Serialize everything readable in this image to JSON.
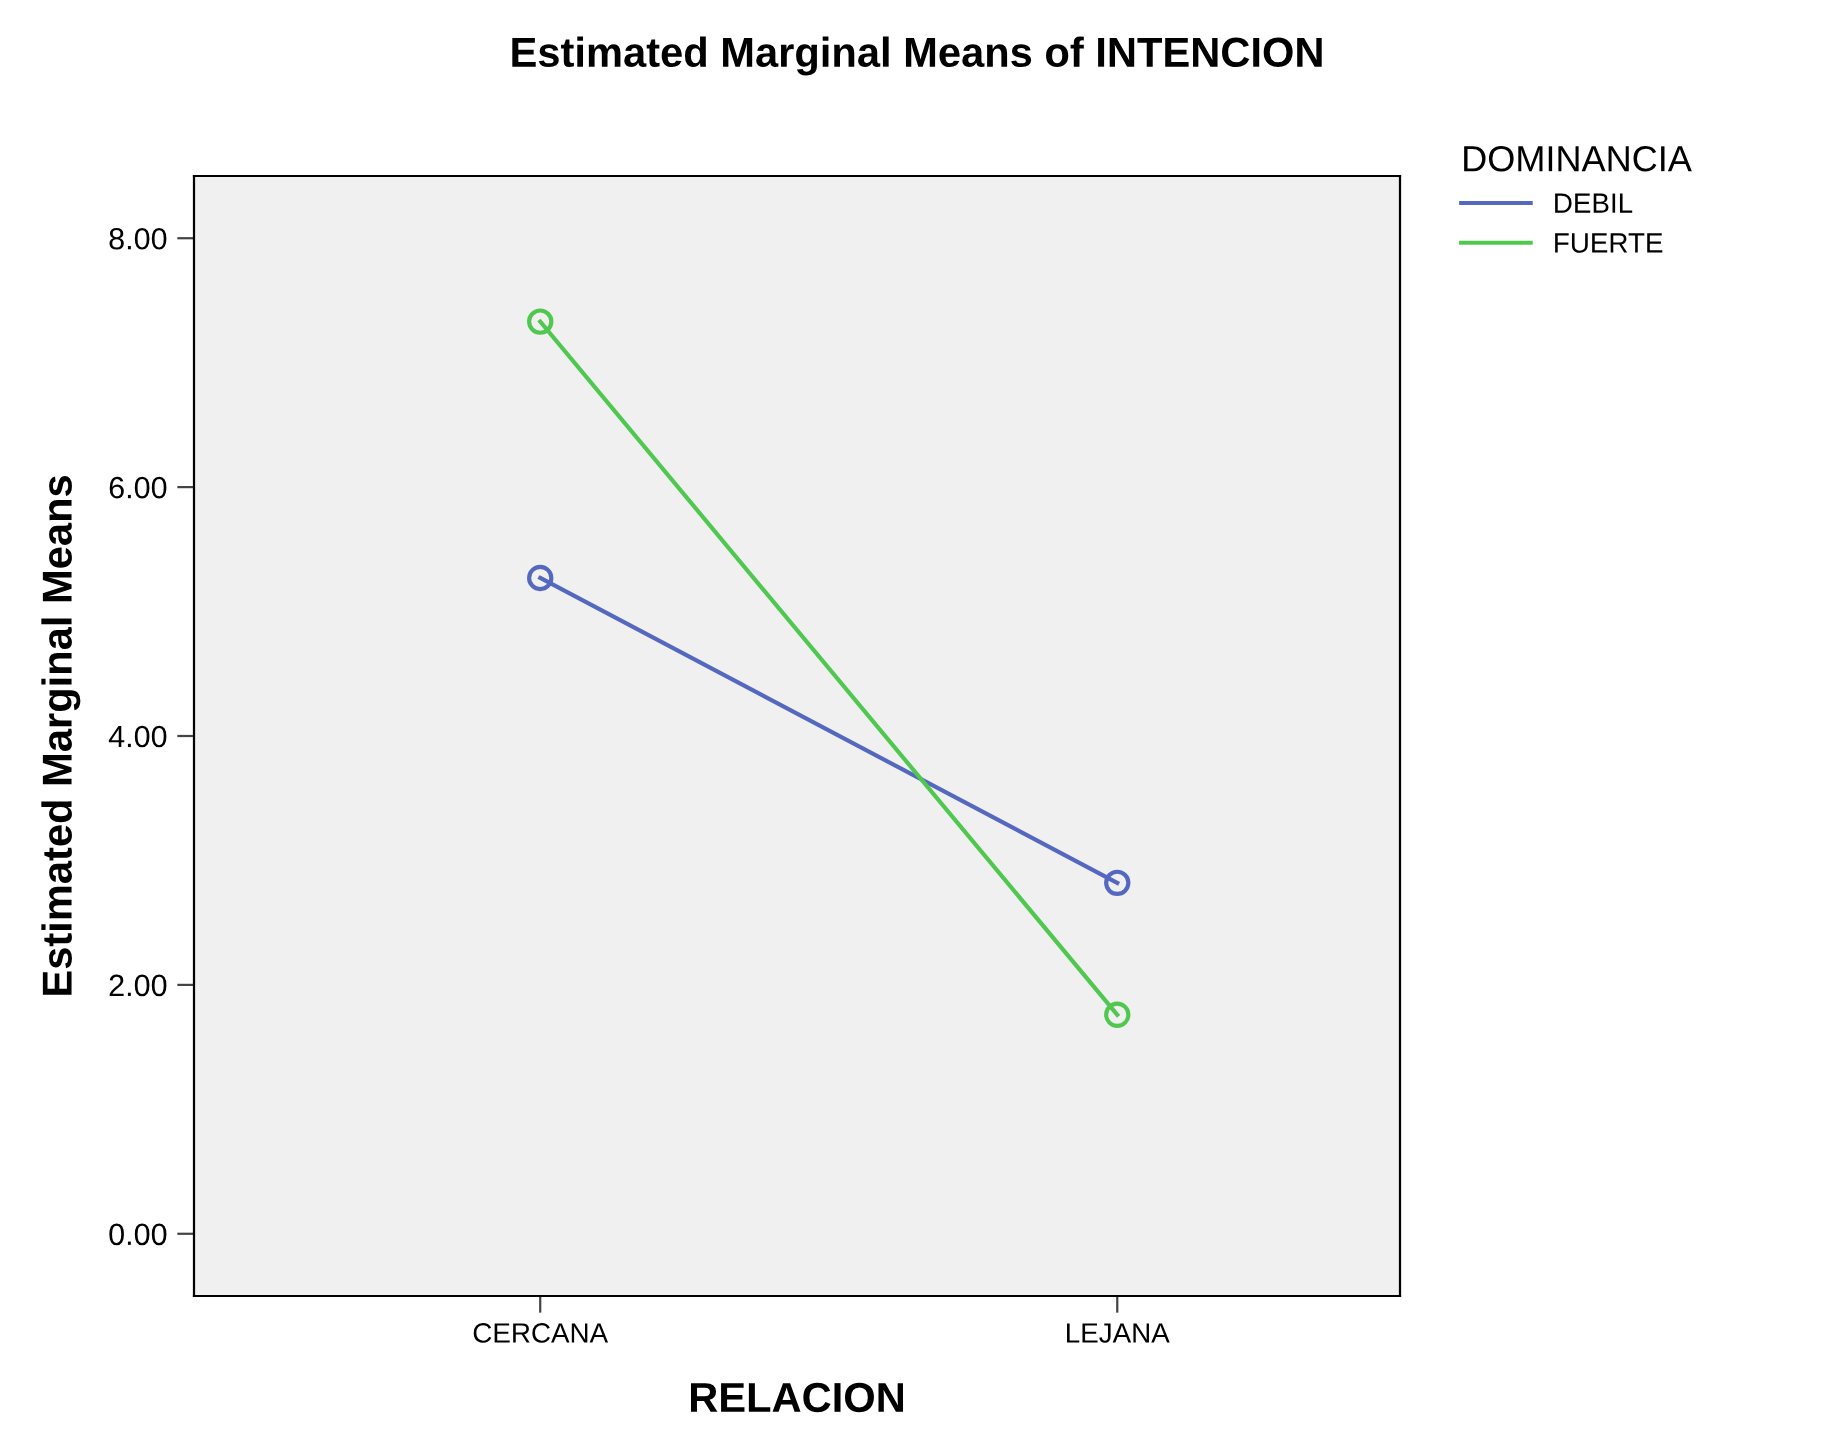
{
  "chart_data": {
    "type": "line",
    "title": "Estimated Marginal Means of INTENCION",
    "xlabel": "RELACION",
    "ylabel": "Estimated Marginal Means",
    "legend_title": "DOMINANCIA",
    "categories": [
      "CERCANA",
      "LEJANA"
    ],
    "series": [
      {
        "name": "DEBIL",
        "color": "#5468c0",
        "values": [
          5.27,
          2.82
        ]
      },
      {
        "name": "FUERTE",
        "color": "#50c850",
        "values": [
          7.33,
          1.76
        ]
      }
    ],
    "ylim": [
      -0.5,
      8.5
    ],
    "yticks": [
      {
        "value": 0,
        "label": "0.00"
      },
      {
        "value": 2,
        "label": "2.00"
      },
      {
        "value": 4,
        "label": "4.00"
      },
      {
        "value": 6,
        "label": "6.00"
      },
      {
        "value": 8,
        "label": "8.00"
      }
    ],
    "marker": "circle",
    "grid": false,
    "legend": "top right"
  }
}
